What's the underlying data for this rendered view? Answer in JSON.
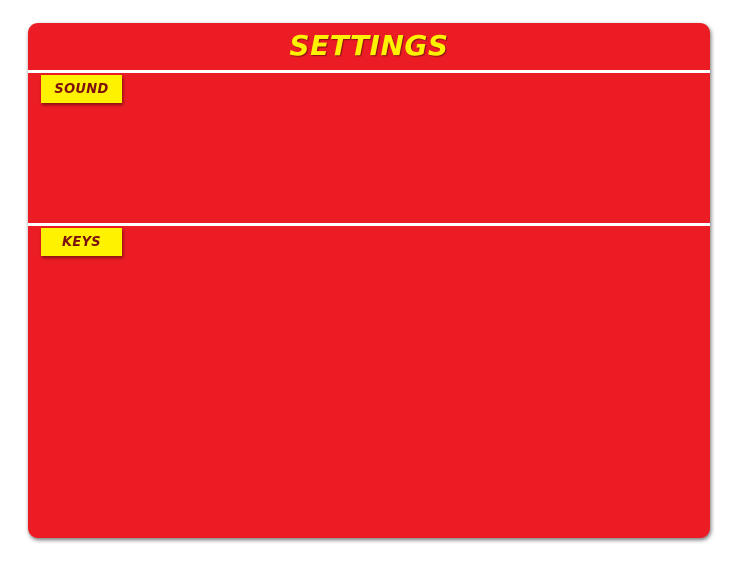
{
  "window": {
    "title": "SETTINGS"
  },
  "sections": [
    {
      "label": "SOUND"
    },
    {
      "label": "KEYS"
    }
  ],
  "colors": {
    "panel": "#ec1c24",
    "tab": "#fff200",
    "title": "#fff200",
    "tab_text": "#7a1010",
    "divider": "#ffffff"
  }
}
